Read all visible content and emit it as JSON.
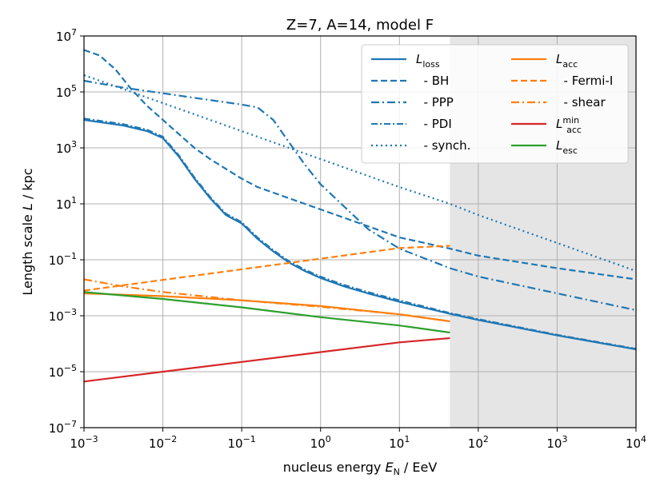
{
  "chart_data": {
    "type": "line",
    "title": "Z=7, A=14, model F",
    "xlabel": {
      "prefix": "nucleus energy ",
      "var": "E",
      "sub": "N",
      "suffix": " / EeV"
    },
    "ylabel": {
      "prefix": "Length scale ",
      "var": "L",
      "suffix": " / kpc"
    },
    "xscale": "log",
    "yscale": "log",
    "xlim_log10": [
      -3,
      4
    ],
    "ylim_log10": [
      -7,
      7
    ],
    "x_ticks": [
      {
        "exp": -3,
        "base": "10",
        "sup": "−3"
      },
      {
        "exp": -2,
        "base": "10",
        "sup": "−2"
      },
      {
        "exp": -1,
        "base": "10",
        "sup": "−1"
      },
      {
        "exp": 0,
        "base": "10",
        "sup": "0"
      },
      {
        "exp": 1,
        "base": "10",
        "sup": "1"
      },
      {
        "exp": 2,
        "base": "10",
        "sup": "2"
      },
      {
        "exp": 3,
        "base": "10",
        "sup": "3"
      },
      {
        "exp": 4,
        "base": "10",
        "sup": "4"
      }
    ],
    "y_ticks": [
      {
        "exp": -7,
        "base": "10",
        "sup": "−7"
      },
      {
        "exp": -5,
        "base": "10",
        "sup": "−5"
      },
      {
        "exp": -3,
        "base": "10",
        "sup": "−3"
      },
      {
        "exp": -1,
        "base": "10",
        "sup": "−1"
      },
      {
        "exp": 1,
        "base": "10",
        "sup": "1"
      },
      {
        "exp": 3,
        "base": "10",
        "sup": "3"
      },
      {
        "exp": 5,
        "base": "10",
        "sup": "5"
      },
      {
        "exp": 7,
        "base": "10",
        "sup": "7"
      }
    ],
    "grid": true,
    "shaded_region_log10": {
      "x_from": 1.64,
      "x_to": 4,
      "color": "#e5e5e5"
    },
    "legend": {
      "placement": "top-right",
      "columns": 2
    },
    "series": [
      {
        "id": "Lloss",
        "name": "L",
        "name_sub": "loss",
        "name_sup": "",
        "color": "#1f77b4",
        "dash": "solid",
        "width": 2.2,
        "points_log10": [
          [
            -3,
            4.0
          ],
          [
            -2.5,
            3.8
          ],
          [
            -2.2,
            3.6
          ],
          [
            -2.0,
            3.35
          ],
          [
            -1.8,
            2.7
          ],
          [
            -1.6,
            1.9
          ],
          [
            -1.4,
            1.2
          ],
          [
            -1.2,
            0.6
          ],
          [
            -1,
            0.3
          ],
          [
            -0.8,
            -0.25
          ],
          [
            -0.6,
            -0.7
          ],
          [
            -0.4,
            -1.1
          ],
          [
            -0.2,
            -1.4
          ],
          [
            0,
            -1.65
          ],
          [
            0.3,
            -1.95
          ],
          [
            0.6,
            -2.2
          ],
          [
            1,
            -2.5
          ],
          [
            1.64,
            -2.93
          ],
          [
            2,
            -3.15
          ],
          [
            3,
            -3.7
          ],
          [
            4,
            -4.2
          ]
        ]
      },
      {
        "id": "BH",
        "name": "  - BH",
        "name_sub": "",
        "name_sup": "",
        "color": "#1f77b4",
        "dash": "8,4",
        "width": 2.2,
        "points_log10": [
          [
            -3,
            6.5
          ],
          [
            -2.8,
            6.3
          ],
          [
            -2.6,
            5.8
          ],
          [
            -2.4,
            5.1
          ],
          [
            -2.2,
            4.5
          ],
          [
            -2,
            4.0
          ],
          [
            -1.8,
            3.5
          ],
          [
            -1.6,
            3.0
          ],
          [
            -1.4,
            2.6
          ],
          [
            -1.2,
            2.25
          ],
          [
            -1,
            1.9
          ],
          [
            -0.8,
            1.6
          ],
          [
            -0.6,
            1.4
          ],
          [
            -0.4,
            1.2
          ],
          [
            -0.2,
            1.0
          ],
          [
            0,
            0.8
          ],
          [
            0.5,
            0.3
          ],
          [
            1,
            -0.2
          ],
          [
            1.64,
            -0.6
          ],
          [
            2,
            -0.85
          ],
          [
            3,
            -1.3
          ],
          [
            4,
            -1.7
          ]
        ]
      },
      {
        "id": "PPP",
        "name": "  - PPP",
        "name_sub": "",
        "name_sup": "",
        "color": "#1f77b4",
        "dash": "10,4,2,4",
        "width": 2.2,
        "points_log10": [
          [
            -3,
            5.4
          ],
          [
            -2.5,
            5.15
          ],
          [
            -2,
            4.95
          ],
          [
            -1.5,
            4.75
          ],
          [
            -1,
            4.55
          ],
          [
            -0.8,
            4.45
          ],
          [
            -0.6,
            4.0
          ],
          [
            -0.4,
            3.2
          ],
          [
            -0.2,
            2.4
          ],
          [
            0,
            1.7
          ],
          [
            0.3,
            0.9
          ],
          [
            0.6,
            0.1
          ],
          [
            1,
            -0.6
          ],
          [
            1.64,
            -1.3
          ],
          [
            2,
            -1.6
          ],
          [
            3,
            -2.2
          ],
          [
            4,
            -2.8
          ]
        ]
      },
      {
        "id": "PDI",
        "name": "  - PDI",
        "name_sub": "",
        "name_sup": "",
        "color": "#1f77b4",
        "dash": "8,3,2,3",
        "width": 2.0,
        "points_log10": [
          [
            -3,
            4.05
          ],
          [
            -2.5,
            3.85
          ],
          [
            -2.2,
            3.65
          ],
          [
            -2.0,
            3.4
          ],
          [
            -1.8,
            2.75
          ],
          [
            -1.6,
            1.95
          ],
          [
            -1.4,
            1.25
          ],
          [
            -1.2,
            0.65
          ],
          [
            -1,
            0.35
          ],
          [
            -0.8,
            -0.2
          ],
          [
            -0.6,
            -0.65
          ],
          [
            -0.4,
            -1.05
          ],
          [
            -0.2,
            -1.35
          ],
          [
            0,
            -1.6
          ],
          [
            0.3,
            -1.9
          ],
          [
            0.6,
            -2.15
          ],
          [
            1,
            -2.45
          ],
          [
            1.64,
            -2.9
          ],
          [
            2,
            -3.12
          ],
          [
            3,
            -3.68
          ],
          [
            4,
            -4.18
          ]
        ]
      },
      {
        "id": "synch",
        "name": "  - synch.",
        "name_sub": "",
        "name_sup": "",
        "color": "#1f77b4",
        "dash": "2,4",
        "width": 2.2,
        "points_log10": [
          [
            -3,
            5.6
          ],
          [
            -2.5,
            5.1
          ],
          [
            -2,
            4.6
          ],
          [
            -1.5,
            4.1
          ],
          [
            -1,
            3.6
          ],
          [
            -0.5,
            3.1
          ],
          [
            0,
            2.6
          ],
          [
            0.5,
            2.1
          ],
          [
            1,
            1.6
          ],
          [
            1.64,
            1.0
          ],
          [
            2,
            0.6
          ],
          [
            3,
            -0.4
          ],
          [
            4,
            -1.4
          ]
        ]
      },
      {
        "id": "Lacc",
        "name": "L",
        "name_sub": "acc",
        "name_sup": "",
        "color": "#ff7f0e",
        "dash": "solid",
        "width": 2.2,
        "points_log10": [
          [
            -3,
            -2.2
          ],
          [
            -2,
            -2.3
          ],
          [
            -1,
            -2.45
          ],
          [
            0,
            -2.65
          ],
          [
            1,
            -2.95
          ],
          [
            1.64,
            -3.2
          ]
        ]
      },
      {
        "id": "Fermi",
        "name": "  - Fermi-I",
        "name_sub": "",
        "name_sup": "",
        "color": "#ff7f0e",
        "dash": "8,4",
        "width": 2.2,
        "points_log10": [
          [
            -3,
            -2.1
          ],
          [
            -2,
            -1.72
          ],
          [
            -1,
            -1.34
          ],
          [
            0,
            -0.96
          ],
          [
            1,
            -0.58
          ],
          [
            1.64,
            -0.5
          ]
        ]
      },
      {
        "id": "shear",
        "name": "  - shear",
        "name_sub": "",
        "name_sup": "",
        "color": "#ff7f0e",
        "dash": "10,4,2,4",
        "width": 2.2,
        "points_log10": [
          [
            -3,
            -1.7
          ],
          [
            -2.5,
            -1.95
          ],
          [
            -2,
            -2.15
          ],
          [
            -1.5,
            -2.3
          ],
          [
            -1,
            -2.45
          ],
          [
            0,
            -2.68
          ],
          [
            1,
            -2.95
          ],
          [
            1.64,
            -3.2
          ]
        ]
      },
      {
        "id": "Laccmin",
        "name": "L",
        "name_sub": "acc",
        "name_sup": "min",
        "color": "#d62728",
        "dash": "solid",
        "width": 2.2,
        "points_log10": [
          [
            -3,
            -5.35
          ],
          [
            -2,
            -5.0
          ],
          [
            -1,
            -4.65
          ],
          [
            0,
            -4.3
          ],
          [
            1,
            -3.95
          ],
          [
            1.64,
            -3.8
          ]
        ]
      },
      {
        "id": "Lesc",
        "name": "L",
        "name_sub": "esc",
        "name_sup": "",
        "color": "#2ca02c",
        "dash": "solid",
        "width": 2.2,
        "points_log10": [
          [
            -3,
            -2.15
          ],
          [
            -2,
            -2.4
          ],
          [
            -1,
            -2.7
          ],
          [
            0,
            -3.05
          ],
          [
            1,
            -3.35
          ],
          [
            1.64,
            -3.6
          ]
        ]
      }
    ]
  }
}
